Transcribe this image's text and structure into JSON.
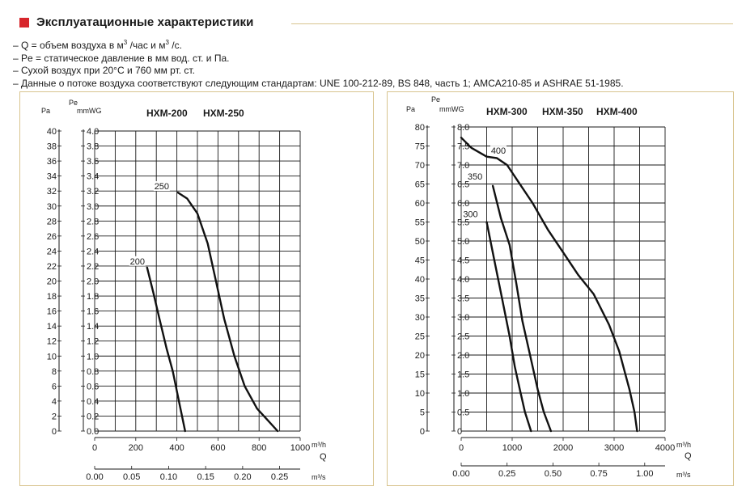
{
  "header": {
    "title": "Эксплуатационные характеристики"
  },
  "notes": {
    "q_pre": "– Q = объем воздуха в м",
    "q_sup1": "3",
    "q_mid": " /час и м",
    "q_sup2": "3",
    "q_post": " /с.",
    "pe": "– Pe = статическое давление в мм вод. ст. и Па.",
    "air": "– Сухой воздух при 20°C и 760 мм рт. ст.",
    "std": "– Данные о потоке воздуха соответствуют следующим стандартам: UNE 100-212-89, BS 848, часть 1; AMCA210-85 и ASHRAE 51-1985."
  },
  "colors": {
    "accent": "#d7262c",
    "frame": "#d8c48e",
    "grid": "#1a1a1a"
  },
  "chart_data": [
    {
      "type": "line",
      "models": [
        "HXM-200",
        "HXM-250"
      ],
      "y_unit_top": "Pe",
      "y_unit_pa": "Pa",
      "y_unit_mmwg": "mmWG",
      "x_unit_m3h": "m³/h",
      "x_label_q": "Q",
      "x_unit_m3s": "m³/s",
      "ylim": [
        0,
        4.0
      ],
      "xlim": [
        0,
        1000
      ],
      "grid": true,
      "y_ticks_mmwg": [
        "0.0",
        "0.2",
        "0.4",
        "0.6",
        "0.8",
        "1.0",
        "1.2",
        "1.4",
        "1.6",
        "1.8",
        "2.0",
        "2.2",
        "2.4",
        "2.6",
        "2.8",
        "3.0",
        "3.2",
        "3.4",
        "3.6",
        "3.8",
        "4.0"
      ],
      "y_ticks_pa": [
        "0",
        "2",
        "4",
        "6",
        "8",
        "10",
        "12",
        "14",
        "16",
        "18",
        "20",
        "22",
        "24",
        "26",
        "28",
        "30",
        "32",
        "34",
        "36",
        "38",
        "40"
      ],
      "x_ticks_m3h": [
        {
          "v": 0,
          "t": "0"
        },
        {
          "v": 200,
          "t": "200"
        },
        {
          "v": 400,
          "t": "400"
        },
        {
          "v": 600,
          "t": "600"
        },
        {
          "v": 800,
          "t": "800"
        },
        {
          "v": 1000,
          "t": "1000"
        }
      ],
      "x_ticks_m3s": [
        {
          "v": 0,
          "t": "0.00"
        },
        {
          "v": 180,
          "t": "0.05"
        },
        {
          "v": 360,
          "t": "0.10"
        },
        {
          "v": 540,
          "t": "0.15"
        },
        {
          "v": 720,
          "t": "0.20"
        },
        {
          "v": 900,
          "t": "0.25"
        }
      ],
      "series": [
        {
          "name": "200",
          "points": [
            [
              255,
              2.18
            ],
            [
              285,
              1.85
            ],
            [
              315,
              1.5
            ],
            [
              350,
              1.1
            ],
            [
              380,
              0.8
            ],
            [
              410,
              0.4
            ],
            [
              440,
              0.0
            ]
          ]
        },
        {
          "name": "250",
          "points": [
            [
              405,
              3.18
            ],
            [
              450,
              3.1
            ],
            [
              500,
              2.9
            ],
            [
              550,
              2.5
            ],
            [
              590,
              2.0
            ],
            [
              630,
              1.5
            ],
            [
              680,
              1.0
            ],
            [
              730,
              0.6
            ],
            [
              790,
              0.3
            ],
            [
              840,
              0.15
            ],
            [
              890,
              0.0
            ]
          ]
        }
      ]
    },
    {
      "type": "line",
      "models": [
        "HXM-300",
        "HXM-350",
        "HXM-400"
      ],
      "y_unit_top": "Pe",
      "y_unit_pa": "Pa",
      "y_unit_mmwg": "mmWG",
      "x_unit_m3h": "m³/h",
      "x_label_q": "Q",
      "x_unit_m3s": "m³/s",
      "ylim": [
        0,
        8.0
      ],
      "xlim": [
        0,
        4000
      ],
      "grid": true,
      "y_ticks_mmwg": [
        "0",
        "0.5",
        "1.0",
        "1.5",
        "2.0",
        "2.5",
        "3.0",
        "3.5",
        "4.0",
        "4.5",
        "5.0",
        "5.5",
        "6.0",
        "6.5",
        "7.0",
        "7.5",
        "8.0"
      ],
      "y_ticks_pa": [
        "0",
        "5",
        "10",
        "15",
        "20",
        "25",
        "30",
        "35",
        "40",
        "45",
        "50",
        "55",
        "60",
        "65",
        "70",
        "75",
        "80"
      ],
      "x_ticks_m3h": [
        {
          "v": 0,
          "t": "0"
        },
        {
          "v": 1000,
          "t": "1000"
        },
        {
          "v": 2000,
          "t": "2000"
        },
        {
          "v": 3000,
          "t": "3000"
        },
        {
          "v": 4000,
          "t": "4000"
        }
      ],
      "x_ticks_m3s": [
        {
          "v": 0,
          "t": "0.00"
        },
        {
          "v": 900,
          "t": "0.25"
        },
        {
          "v": 1800,
          "t": "0.50"
        },
        {
          "v": 2700,
          "t": "0.75"
        },
        {
          "v": 3600,
          "t": "1.00"
        }
      ],
      "series": [
        {
          "name": "300",
          "points": [
            [
              500,
              5.5
            ],
            [
              650,
              4.5
            ],
            [
              800,
              3.5
            ],
            [
              950,
              2.5
            ],
            [
              1050,
              1.7
            ],
            [
              1150,
              1.1
            ],
            [
              1250,
              0.5
            ],
            [
              1370,
              0.0
            ]
          ]
        },
        {
          "name": "350",
          "points": [
            [
              620,
              6.45
            ],
            [
              780,
              5.6
            ],
            [
              950,
              4.9
            ],
            [
              1080,
              3.9
            ],
            [
              1200,
              2.9
            ],
            [
              1350,
              2.0
            ],
            [
              1500,
              1.1
            ],
            [
              1620,
              0.5
            ],
            [
              1760,
              0.0
            ]
          ]
        },
        {
          "name": "400",
          "points": [
            [
              0,
              7.72
            ],
            [
              200,
              7.45
            ],
            [
              500,
              7.22
            ],
            [
              700,
              7.18
            ],
            [
              900,
              7.0
            ],
            [
              1100,
              6.6
            ],
            [
              1400,
              6.0
            ],
            [
              1700,
              5.3
            ],
            [
              2000,
              4.7
            ],
            [
              2300,
              4.1
            ],
            [
              2600,
              3.6
            ],
            [
              2900,
              2.8
            ],
            [
              3100,
              2.1
            ],
            [
              3300,
              1.1
            ],
            [
              3400,
              0.5
            ],
            [
              3450,
              0.0
            ]
          ]
        }
      ]
    }
  ]
}
